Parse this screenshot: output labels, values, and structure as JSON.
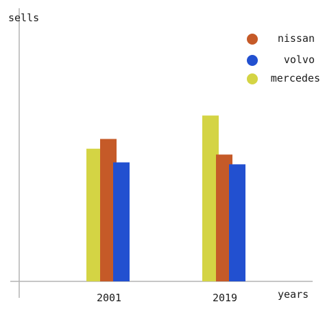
{
  "chart_data": {
    "type": "bar",
    "categories": [
      "2001",
      "2019"
    ],
    "series": [
      {
        "name": "mercedes",
        "values": [
          6.8,
          8.5
        ]
      },
      {
        "name": "nissan",
        "values": [
          7.3,
          6.5
        ]
      },
      {
        "name": "volvo",
        "values": [
          6.1,
          6.0
        ]
      }
    ],
    "title": "",
    "xlabel": "years",
    "ylabel": "sells",
    "ylim": [
      0,
      14
    ],
    "grid": false,
    "legend_placement": "top-right",
    "legend_order": [
      "nissan",
      "volvo",
      "mercedes"
    ],
    "colors": {
      "mercedes": "#d4d444",
      "nissan": "#c55a28",
      "volvo": "#2250d0",
      "axis": "#b4b4b4"
    }
  }
}
